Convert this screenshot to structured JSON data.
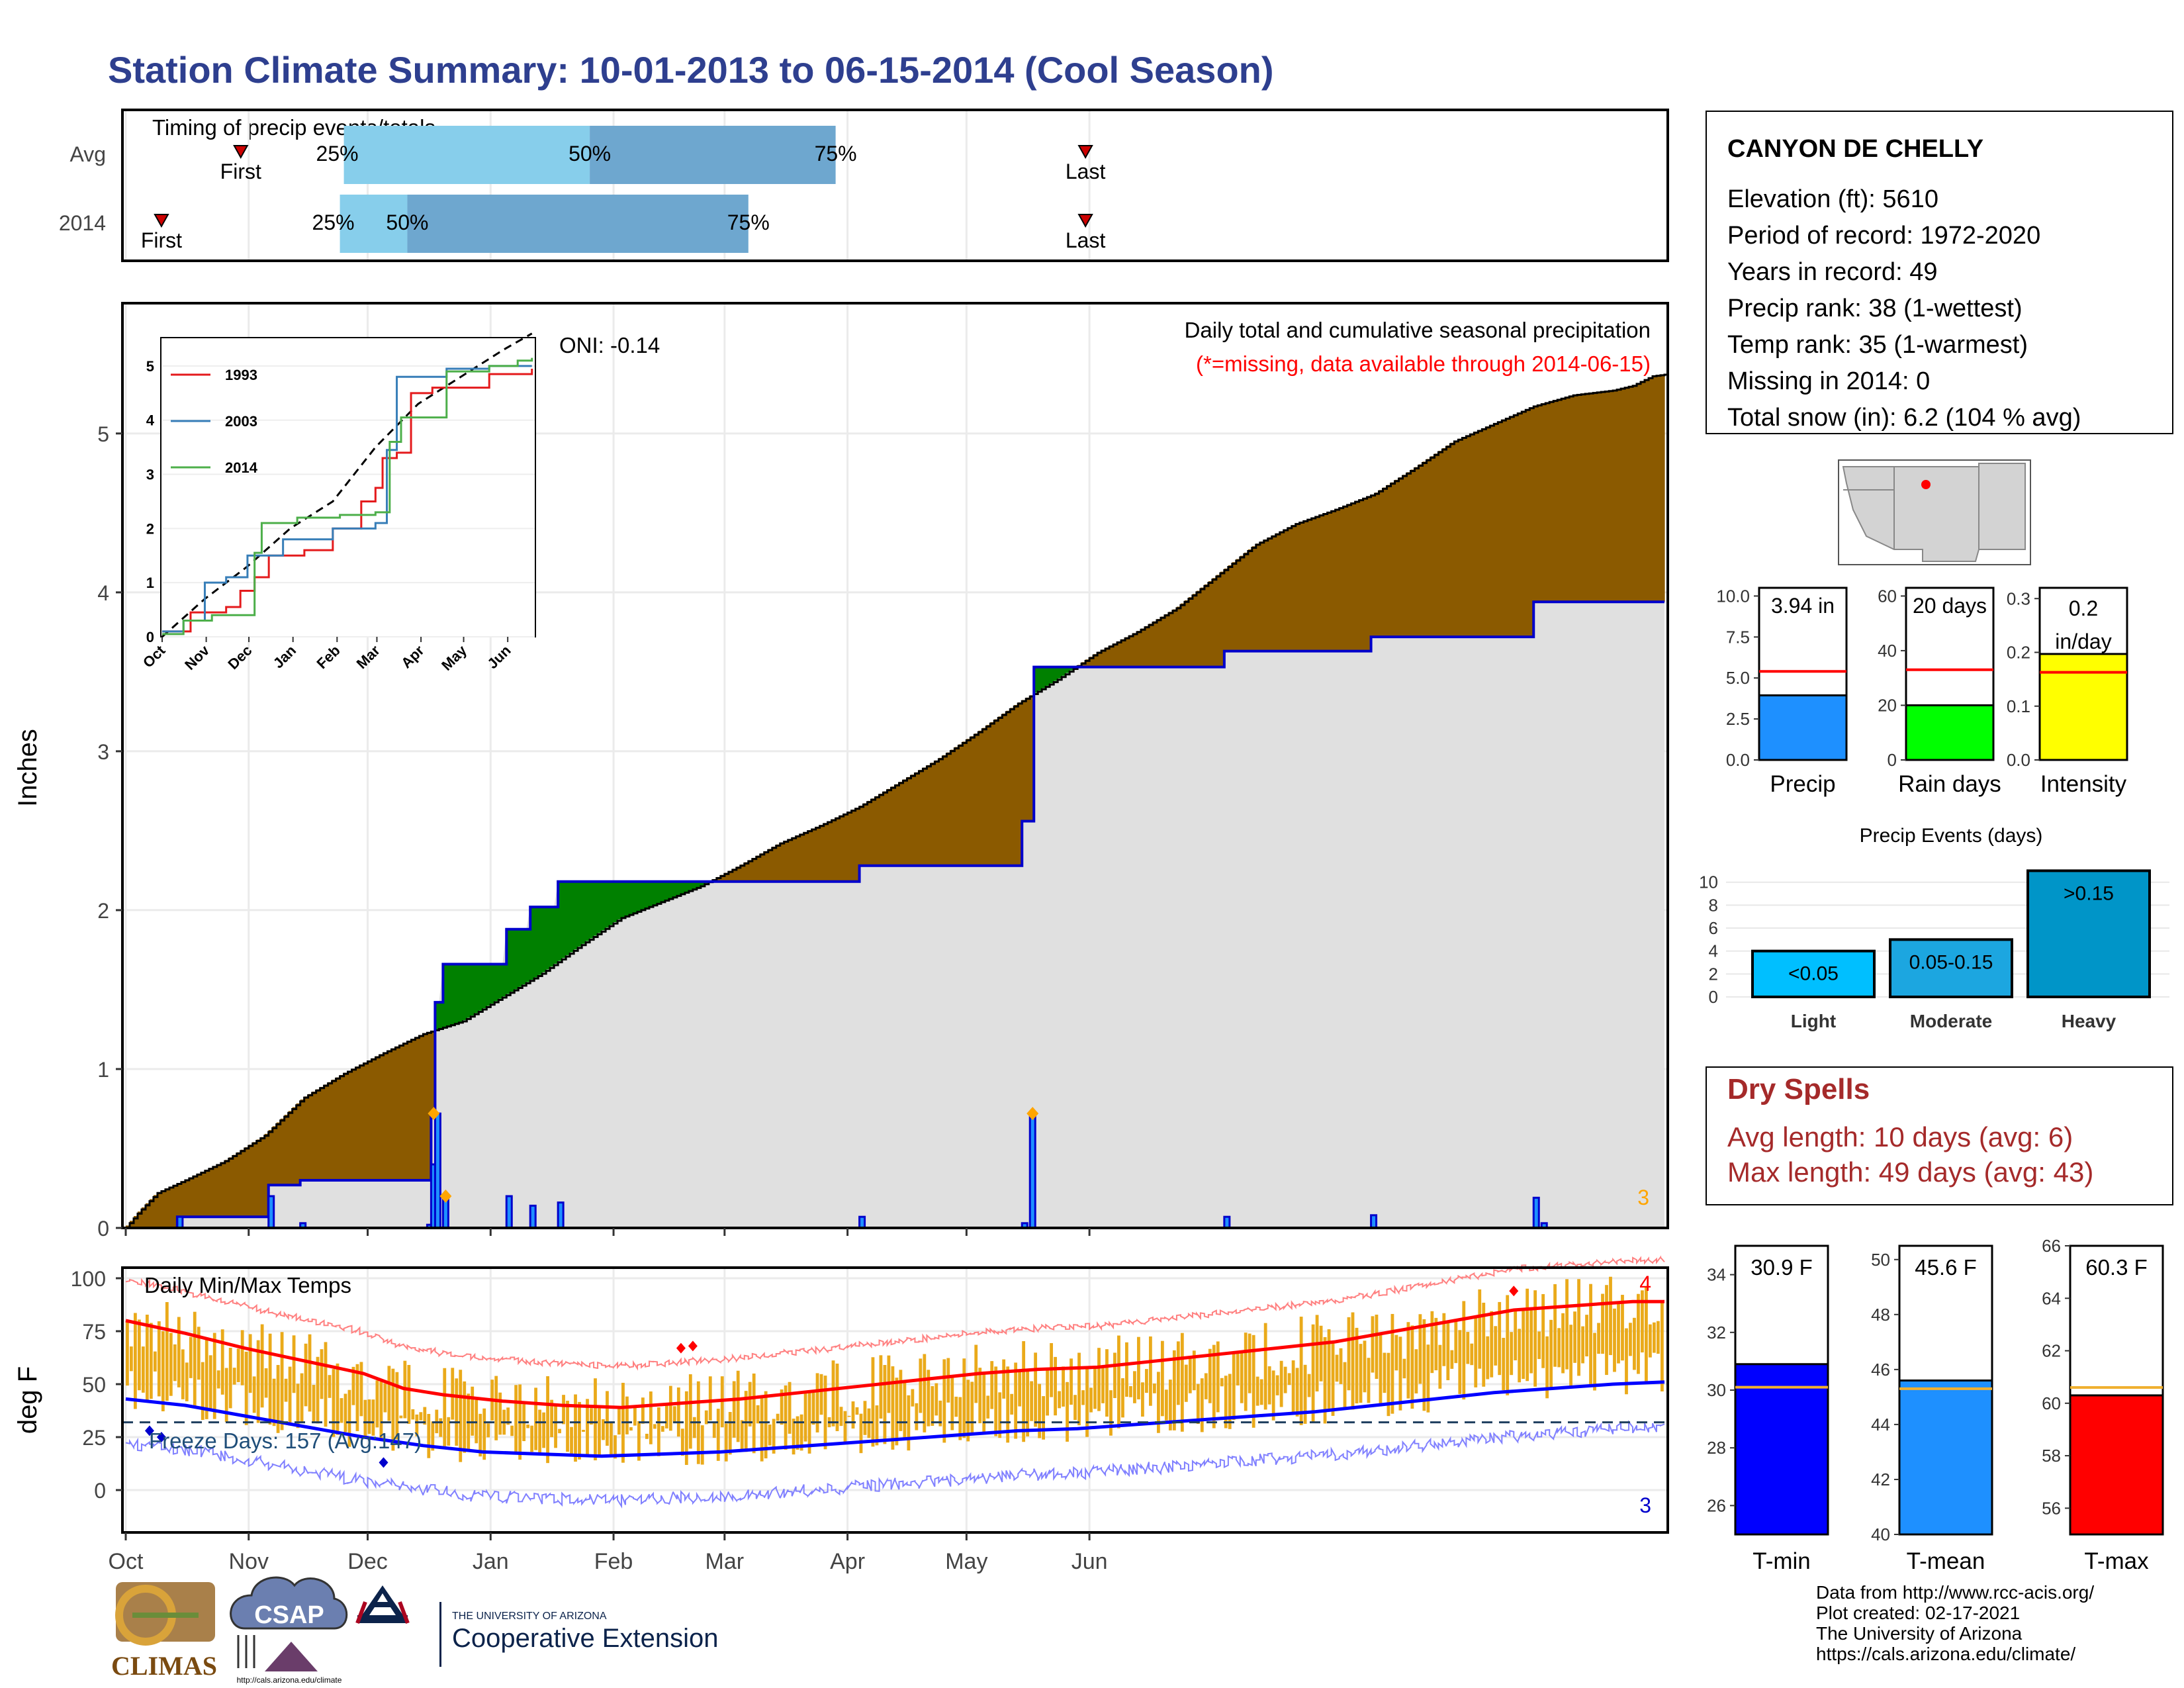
{
  "title": "Station Climate Summary: 10-01-2013 to 06-15-2014 (Cool Season)",
  "colors": {
    "title": "#2e3f8f",
    "cumulative_fill": "#8b5a00",
    "avg_fill_green": "#008000",
    "observed_line": "#0000cc",
    "background_fill": "#e0e0e0",
    "dry_spell_text": "#a52a2a",
    "missing_text": "#ff0000",
    "t_min": "#0000ff",
    "t_mean": "#1e90ff",
    "t_max": "#ff0000",
    "temp_bars": "#eaaa1a",
    "timing_q1": "#87ceeb",
    "timing_q2": "#6ea7cf"
  },
  "timing": {
    "panel_title": "Timing of precip events/totals",
    "rows": [
      {
        "label": "Avg",
        "first_label": "First",
        "last_label": "Last",
        "first_day": 29,
        "last_day": 242,
        "p25_day": 55,
        "p50_day": 117,
        "p75_day": 179,
        "p25_text": "25%",
        "p50_text": "50%",
        "p75_text": "75%"
      },
      {
        "label": "2014",
        "first_label": "First",
        "last_label": "Last",
        "first_day": 9,
        "last_day": 242,
        "p25_day": 54,
        "p50_day": 71,
        "p75_day": 157,
        "p25_text": "25%",
        "p50_text": "50%",
        "p75_text": "75%"
      }
    ]
  },
  "station": {
    "name": "CANYON DE CHELLY",
    "lines": [
      "Elevation (ft): 5610",
      "Period of record: 1972-2020",
      "Years in record: 49",
      "Precip rank: 38 (1-wettest)",
      "Temp rank: 35 (1-warmest)",
      "Missing in 2014: 0",
      "Total snow (in): 6.2 (104 % avg)"
    ]
  },
  "precip_panel": {
    "ylabel": "Inches",
    "oni": "ONI: -0.14",
    "legend_title": "Daily total and cumulative seasonal precipitation",
    "missing_note": "(*=missing, data available through 2014-06-15)",
    "corner_count": "3"
  },
  "inset": {
    "series_names": [
      "1993",
      "2003",
      "2014"
    ],
    "series_colors": [
      "#e41a1c",
      "#377eb8",
      "#4daf4a"
    ],
    "x_ticks": [
      "Oct",
      "Nov",
      "Dec",
      "Jan",
      "Feb",
      "Mar",
      "Apr",
      "May",
      "Jun"
    ],
    "y_ticks": [
      "0",
      "1",
      "2",
      "3",
      "4",
      "5"
    ]
  },
  "mini_bars": [
    {
      "label": "Precip",
      "value_text": "3.94 in",
      "value": 3.94,
      "avg": 5.4,
      "ymax": 10.5,
      "ticks": [
        "0.0",
        "2.5",
        "5.0",
        "7.5",
        "10.0"
      ],
      "tick_vals": [
        0,
        2.5,
        5,
        7.5,
        10
      ],
      "color": "#1e90ff"
    },
    {
      "label": "Rain days",
      "value_text": "20 days",
      "value": 20,
      "avg": 33,
      "ymax": 63,
      "ticks": [
        "0",
        "20",
        "40",
        "60"
      ],
      "tick_vals": [
        0,
        20,
        40,
        60
      ],
      "color": "#00ff00"
    },
    {
      "label": "Intensity",
      "value_text": "0.2 in/day",
      "value": 0.197,
      "avg": 0.163,
      "ymax": 0.32,
      "ticks": [
        "0.0",
        "0.1",
        "0.2",
        "0.3"
      ],
      "tick_vals": [
        0,
        0.1,
        0.2,
        0.3
      ],
      "color": "#ffff00"
    }
  ],
  "precip_events": {
    "title": "Precip Events (days)",
    "categories": [
      "Light",
      "Moderate",
      "Heavy"
    ],
    "values": [
      4,
      5,
      11
    ],
    "labels": [
      "<0.05",
      "0.05-0.15",
      ">0.15"
    ],
    "colors": [
      "#00bfff",
      "#1ca6e0",
      "#0095c8"
    ],
    "ticks": [
      "0",
      "2",
      "4",
      "6",
      "8",
      "10"
    ]
  },
  "dry_spells": {
    "title": "Dry Spells",
    "avg_line": "Avg length: 10 days (avg: 6)",
    "max_line": "Max length: 49 days (avg: 43)"
  },
  "temp_panel": {
    "title": "Daily Min/Max Temps",
    "ylabel": "deg F",
    "freeze_text": "Freeze Days: 157 (Avg:147)",
    "y_ticks": [
      "0",
      "25",
      "50",
      "75",
      "100"
    ],
    "x_ticks": [
      "Oct",
      "Nov",
      "Dec",
      "Jan",
      "Feb",
      "Mar",
      "Apr",
      "May",
      "Jun"
    ],
    "count_max": "4",
    "count_min": "3"
  },
  "temp_bars": [
    {
      "label": "T-min",
      "value_text": "30.9 F",
      "value": 30.9,
      "avg": 30.1,
      "ymin": 25,
      "ymax": 35,
      "ticks": [
        "26",
        "28",
        "30",
        "32",
        "34"
      ],
      "tick_vals": [
        26,
        28,
        30,
        32,
        34
      ],
      "color": "#0000ff"
    },
    {
      "label": "T-mean",
      "value_text": "45.6 F",
      "value": 45.6,
      "avg": 45.3,
      "ymin": 40,
      "ymax": 50.5,
      "ticks": [
        "40",
        "42",
        "44",
        "46",
        "48",
        "50"
      ],
      "tick_vals": [
        40,
        42,
        44,
        46,
        48,
        50
      ],
      "color": "#1e90ff"
    },
    {
      "label": "T-max",
      "value_text": "60.3 F",
      "value": 60.3,
      "avg": 60.6,
      "ymin": 55,
      "ymax": 66,
      "ticks": [
        "56",
        "58",
        "60",
        "62",
        "64",
        "66"
      ],
      "tick_vals": [
        56,
        58,
        60,
        62,
        64,
        66
      ],
      "color": "#ff0000"
    }
  ],
  "footer": {
    "lines": [
      "Data from http://www.rcc-acis.org/",
      "Plot created: 02-17-2021",
      "The University of Arizona",
      "https://cals.arizona.edu/climate/"
    ],
    "climas": "CLIMAS",
    "csap": "CSAP",
    "csap_url": "http://cals.arizona.edu/climate",
    "ua_small": "THE UNIVERSITY OF ARIZONA",
    "ua_big": "Cooperative Extension"
  },
  "chart_data": [
    {
      "type": "area",
      "title": "Daily total and cumulative seasonal precipitation",
      "ylabel": "Inches",
      "ylim": [
        0,
        5.8
      ],
      "x_ticks": [
        "Oct",
        "Nov",
        "Dec",
        "Jan",
        "Feb",
        "Mar",
        "Apr",
        "May",
        "Jun"
      ],
      "series": [
        {
          "name": "",
          "points": [
            [
              0,
              0
            ],
            [
              3,
              0.09
            ],
            [
              8,
              0.22
            ],
            [
              15,
              0.3
            ],
            [
              25,
              0.42
            ],
            [
              35,
              0.58
            ],
            [
              45,
              0.82
            ],
            [
              55,
              0.97
            ],
            [
              65,
              1.1
            ],
            [
              75,
              1.22
            ],
            [
              85,
              1.3
            ],
            [
              95,
              1.45
            ],
            [
              105,
              1.6
            ],
            [
              115,
              1.78
            ],
            [
              125,
              1.95
            ],
            [
              135,
              2.05
            ],
            [
              145,
              2.15
            ],
            [
              155,
              2.28
            ],
            [
              165,
              2.42
            ],
            [
              175,
              2.53
            ],
            [
              185,
              2.65
            ],
            [
              195,
              2.8
            ],
            [
              205,
              2.95
            ],
            [
              215,
              3.12
            ],
            [
              225,
              3.3
            ],
            [
              235,
              3.45
            ],
            [
              245,
              3.62
            ],
            [
              255,
              3.75
            ],
            [
              265,
              3.9
            ],
            [
              275,
              4.1
            ],
            [
              285,
              4.3
            ],
            [
              295,
              4.43
            ],
            [
              305,
              4.52
            ],
            [
              315,
              4.62
            ],
            [
              325,
              4.78
            ],
            [
              335,
              4.95
            ],
            [
              345,
              5.06
            ],
            [
              355,
              5.17
            ],
            [
              365,
              5.24
            ],
            [
              375,
              5.27
            ],
            [
              380,
              5.3
            ],
            [
              385,
              5.36
            ],
            [
              388,
              5.37
            ]
          ]
        },
        {
          "name": "",
          "points": [
            [
              0,
              0
            ],
            [
              13,
              0
            ],
            [
              13,
              0.07
            ],
            [
              36,
              0.07
            ],
            [
              36,
              0.27
            ],
            [
              44,
              0.27
            ],
            [
              44,
              0.3
            ],
            [
              77,
              0.3
            ],
            [
              77,
              0.7
            ],
            [
              78,
              0.7
            ],
            [
              78,
              1.42
            ],
            [
              80,
              1.42
            ],
            [
              80,
              1.66
            ],
            [
              96,
              1.66
            ],
            [
              96,
              1.88
            ],
            [
              102,
              1.88
            ],
            [
              102,
              2.02
            ],
            [
              109,
              2.02
            ],
            [
              109,
              2.18
            ],
            [
              185,
              2.18
            ],
            [
              185,
              2.28
            ],
            [
              223,
              2.28
            ],
            [
              223,
              2.28
            ],
            [
              226,
              2.28
            ],
            [
              226,
              2.56
            ],
            [
              229,
              2.56
            ],
            [
              229,
              3.53
            ],
            [
              277,
              3.53
            ],
            [
              277,
              3.63
            ],
            [
              314,
              3.63
            ],
            [
              314,
              3.72
            ],
            [
              355,
              3.72
            ],
            [
              355,
              3.94
            ],
            [
              388,
              3.94
            ]
          ]
        }
      ],
      "daily_precip": [
        [
          13,
          0.07
        ],
        [
          36,
          0.2
        ],
        [
          44,
          0.03
        ],
        [
          76,
          0.02
        ],
        [
          77,
          0.4
        ],
        [
          78,
          0.72
        ],
        [
          80,
          0.2
        ],
        [
          96,
          0.2
        ],
        [
          102,
          0.14
        ],
        [
          109,
          0.16
        ],
        [
          185,
          0.07
        ],
        [
          226,
          0.03
        ],
        [
          228,
          0.72
        ],
        [
          277,
          0.07
        ],
        [
          314,
          0.08
        ],
        [
          355,
          0.19
        ],
        [
          357,
          0.03
        ]
      ]
    },
    {
      "type": "line",
      "title": "",
      "x_ticks": [
        "Oct",
        "Nov",
        "Dec",
        "Jan",
        "Feb",
        "Mar",
        "Apr",
        "May",
        "Jun"
      ],
      "ylim": [
        0,
        5.5
      ],
      "series": [
        {
          "name": "1993",
          "points": [
            [
              0,
              0.1
            ],
            [
              20,
              0.45
            ],
            [
              45,
              0.55
            ],
            [
              55,
              0.85
            ],
            [
              65,
              1.1
            ],
            [
              75,
              1.5
            ],
            [
              100,
              1.6
            ],
            [
              120,
              2.0
            ],
            [
              140,
              2.5
            ],
            [
              150,
              2.75
            ],
            [
              155,
              3.3
            ],
            [
              165,
              3.4
            ],
            [
              175,
              4.5
            ],
            [
              190,
              4.6
            ],
            [
              230,
              4.85
            ],
            [
              260,
              4.95
            ]
          ]
        },
        {
          "name": "2003",
          "points": [
            [
              0,
              0.1
            ],
            [
              15,
              0.3
            ],
            [
              30,
              1.0
            ],
            [
              45,
              1.1
            ],
            [
              60,
              1.5
            ],
            [
              85,
              1.8
            ],
            [
              120,
              2.0
            ],
            [
              150,
              2.1
            ],
            [
              158,
              3.45
            ],
            [
              165,
              4.8
            ],
            [
              200,
              4.95
            ],
            [
              230,
              5.0
            ],
            [
              260,
              5.0
            ]
          ]
        },
        {
          "name": "2014",
          "points": [
            [
              0,
              0.05
            ],
            [
              15,
              0.3
            ],
            [
              35,
              0.4
            ],
            [
              55,
              0.4
            ],
            [
              65,
              1.55
            ],
            [
              70,
              2.1
            ],
            [
              95,
              2.2
            ],
            [
              125,
              2.25
            ],
            [
              150,
              2.3
            ],
            [
              160,
              3.6
            ],
            [
              168,
              4.05
            ],
            [
              200,
              4.9
            ],
            [
              230,
              5.0
            ],
            [
              250,
              5.1
            ],
            [
              260,
              5.15
            ]
          ]
        }
      ],
      "avg_cumulative": [
        [
          0,
          0
        ],
        [
          30,
          0.7
        ],
        [
          60,
          1.3
        ],
        [
          90,
          2.0
        ],
        [
          120,
          2.5
        ],
        [
          150,
          3.5
        ],
        [
          180,
          4.3
        ],
        [
          210,
          4.8
        ],
        [
          240,
          5.3
        ],
        [
          260,
          5.6
        ]
      ]
    },
    {
      "type": "bar",
      "title": "Daily Min/Max Temps",
      "ylabel": "deg F",
      "ylim": [
        -20,
        105
      ],
      "x_ticks": [
        "Oct",
        "Nov",
        "Dec",
        "Jan",
        "Feb",
        "Mar",
        "Apr",
        "May",
        "Jun"
      ],
      "avg_max_points": [
        [
          0,
          80
        ],
        [
          15,
          74
        ],
        [
          30,
          67
        ],
        [
          45,
          61
        ],
        [
          60,
          55
        ],
        [
          70,
          48
        ],
        [
          80,
          45
        ],
        [
          95,
          42
        ],
        [
          110,
          40
        ],
        [
          125,
          39
        ],
        [
          140,
          41
        ],
        [
          155,
          43
        ],
        [
          170,
          46
        ],
        [
          185,
          49
        ],
        [
          200,
          52
        ],
        [
          215,
          55
        ],
        [
          230,
          57
        ],
        [
          245,
          58
        ],
        [
          260,
          61
        ],
        [
          275,
          64
        ],
        [
          290,
          67
        ],
        [
          305,
          70
        ],
        [
          320,
          75
        ],
        [
          335,
          80
        ],
        [
          350,
          85
        ],
        [
          365,
          87
        ],
        [
          380,
          89
        ],
        [
          388,
          89
        ]
      ],
      "avg_min_points": [
        [
          0,
          43
        ],
        [
          15,
          40
        ],
        [
          30,
          35
        ],
        [
          45,
          30
        ],
        [
          60,
          25
        ],
        [
          75,
          21
        ],
        [
          90,
          18
        ],
        [
          105,
          17
        ],
        [
          120,
          16
        ],
        [
          135,
          17
        ],
        [
          150,
          18
        ],
        [
          165,
          20
        ],
        [
          180,
          22
        ],
        [
          195,
          24
        ],
        [
          210,
          26
        ],
        [
          225,
          28
        ],
        [
          240,
          29
        ],
        [
          255,
          31
        ],
        [
          270,
          33
        ],
        [
          285,
          35
        ],
        [
          300,
          37
        ],
        [
          315,
          40
        ],
        [
          330,
          43
        ],
        [
          345,
          46
        ],
        [
          360,
          48
        ],
        [
          375,
          50
        ],
        [
          388,
          51
        ]
      ],
      "freeze_line": 32
    },
    {
      "type": "bar",
      "title": "Precip Events (days)",
      "categories": [
        "Light",
        "Moderate",
        "Heavy"
      ],
      "values": [
        4,
        5,
        11
      ]
    }
  ]
}
